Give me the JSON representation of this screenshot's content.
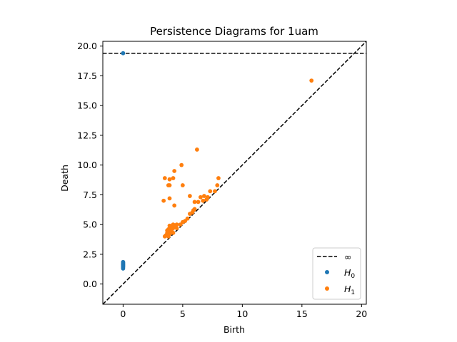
{
  "chart_data": {
    "type": "scatter",
    "title": "Persistence Diagrams for 1uam",
    "xlabel": "Birth",
    "ylabel": "Death",
    "xlim": [
      -1.7,
      20.4
    ],
    "ylim": [
      -1.7,
      20.4
    ],
    "xticks": [
      0,
      5,
      10,
      15,
      20
    ],
    "xtick_labels": [
      "0",
      "5",
      "10",
      "15",
      "20"
    ],
    "yticks": [
      0.0,
      2.5,
      5.0,
      7.5,
      10.0,
      12.5,
      15.0,
      17.5,
      20.0
    ],
    "ytick_labels": [
      "0.0",
      "2.5",
      "5.0",
      "7.5",
      "10.0",
      "12.5",
      "15.0",
      "17.5",
      "20.0"
    ],
    "infinity_level": 19.4,
    "diagonal": true,
    "legend_position": "lower-right",
    "legend_entries": [
      {
        "label": "∞",
        "kind": "dashed-line",
        "color": "#000000"
      },
      {
        "label_main": "H",
        "label_sub": "0",
        "kind": "marker",
        "color": "#1f77b4"
      },
      {
        "label_main": "H",
        "label_sub": "1",
        "kind": "marker",
        "color": "#ff7f0e"
      }
    ],
    "series": [
      {
        "id": "H0",
        "color": "#1f77b4",
        "points": [
          [
            0,
            19.4
          ],
          [
            0,
            1.3
          ],
          [
            0,
            1.4
          ],
          [
            0,
            1.45
          ],
          [
            0,
            1.5
          ],
          [
            0,
            1.55
          ],
          [
            0,
            1.6
          ],
          [
            0,
            1.65
          ],
          [
            0,
            1.7
          ],
          [
            0,
            1.75
          ],
          [
            0,
            1.8
          ],
          [
            0,
            1.85
          ]
        ]
      },
      {
        "id": "H1",
        "color": "#ff7f0e",
        "points": [
          [
            15.8,
            17.1
          ],
          [
            6.2,
            11.3
          ],
          [
            4.9,
            10.0
          ],
          [
            4.3,
            9.5
          ],
          [
            3.5,
            8.9
          ],
          [
            3.9,
            8.8
          ],
          [
            4.2,
            8.9
          ],
          [
            8.0,
            8.9
          ],
          [
            3.8,
            8.3
          ],
          [
            3.9,
            8.3
          ],
          [
            5.0,
            8.3
          ],
          [
            7.9,
            8.3
          ],
          [
            7.3,
            7.8
          ],
          [
            7.7,
            7.8
          ],
          [
            3.9,
            7.2
          ],
          [
            5.6,
            7.4
          ],
          [
            6.5,
            7.3
          ],
          [
            6.8,
            7.4
          ],
          [
            7.1,
            7.3
          ],
          [
            3.4,
            7.0
          ],
          [
            6.0,
            6.9
          ],
          [
            6.3,
            6.9
          ],
          [
            6.7,
            7.0
          ],
          [
            7.0,
            7.1
          ],
          [
            4.3,
            6.6
          ],
          [
            5.9,
            6.2
          ],
          [
            6.0,
            6.3
          ],
          [
            5.6,
            5.9
          ],
          [
            5.8,
            6.0
          ],
          [
            5.4,
            5.5
          ],
          [
            5.0,
            5.2
          ],
          [
            5.2,
            5.3
          ],
          [
            4.8,
            5.0
          ],
          [
            4.5,
            5.0
          ],
          [
            4.2,
            5.0
          ],
          [
            3.9,
            4.9
          ],
          [
            4.0,
            4.8
          ],
          [
            4.2,
            4.7
          ],
          [
            4.4,
            4.8
          ],
          [
            4.0,
            4.5
          ],
          [
            3.8,
            4.6
          ],
          [
            4.1,
            4.4
          ],
          [
            3.7,
            4.3
          ],
          [
            3.9,
            4.2
          ],
          [
            4.2,
            4.3
          ],
          [
            3.6,
            4.1
          ],
          [
            3.8,
            4.0
          ],
          [
            3.5,
            4.0
          ],
          [
            4.0,
            4.6
          ],
          [
            4.3,
            4.9
          ],
          [
            3.9,
            4.4
          ],
          [
            3.7,
            4.5
          ],
          [
            4.5,
            4.7
          ],
          [
            4.1,
            4.9
          ]
        ]
      }
    ]
  }
}
